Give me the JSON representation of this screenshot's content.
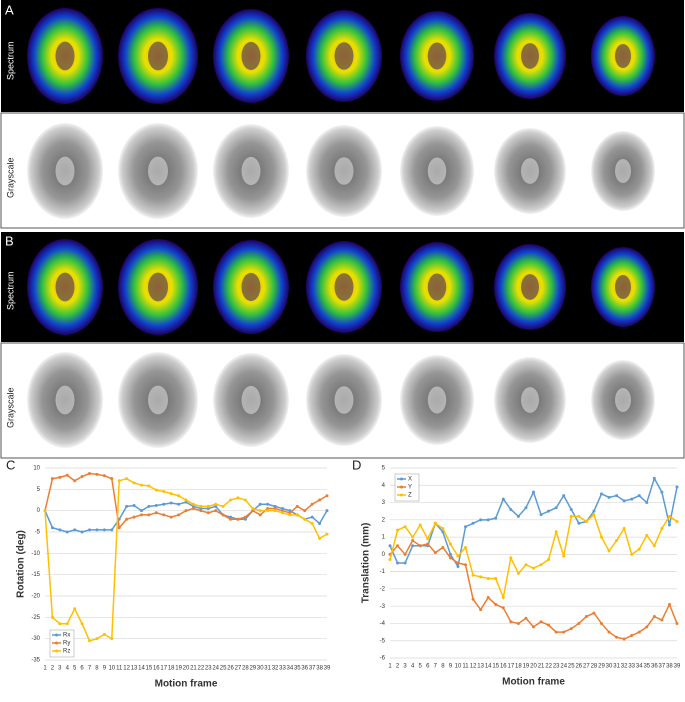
{
  "panels": {
    "a": "A",
    "b": "B",
    "spectrum": "Spectrum",
    "grayscale": "Grayscale"
  },
  "chart_data": [
    {
      "type": "line",
      "panel": "C",
      "ylabel": "Rotation (deg)",
      "xlabel": "Motion frame",
      "x": [
        1,
        2,
        3,
        4,
        5,
        6,
        7,
        8,
        9,
        10,
        11,
        12,
        13,
        14,
        15,
        16,
        17,
        18,
        19,
        20,
        21,
        22,
        23,
        24,
        25,
        26,
        27,
        28,
        29,
        30,
        31,
        32,
        33,
        34,
        35,
        36,
        37,
        38,
        39
      ],
      "xlim": [
        1,
        39
      ],
      "xticks": [
        1,
        2,
        3,
        4,
        5,
        6,
        7,
        8,
        9,
        10,
        11,
        12,
        13,
        14,
        15,
        16,
        17,
        18,
        19,
        20,
        21,
        22,
        23,
        24,
        25,
        26,
        27,
        28,
        29,
        30,
        31,
        32,
        33,
        34,
        35,
        36,
        37,
        38,
        39
      ],
      "ylim": [
        -35,
        10
      ],
      "yticks": [
        -35,
        -30,
        -25,
        -20,
        -15,
        -10,
        -5,
        0,
        5,
        10
      ],
      "grid": true,
      "legend": "lower left",
      "series": [
        {
          "name": "Rx",
          "color": "#5b9bd5",
          "values": [
            0,
            -4,
            -4.5,
            -5,
            -4.5,
            -5,
            -4.5,
            -4.5,
            -4.5,
            -4.5,
            -2,
            1,
            1.2,
            0,
            1,
            1.2,
            1.5,
            1.8,
            1.5,
            2,
            1,
            0.5,
            0.5,
            1,
            -1,
            -1.5,
            -2,
            -2,
            0,
            1.5,
            1.5,
            1,
            0.5,
            0,
            -1,
            -2,
            -1.5,
            -3,
            0
          ]
        },
        {
          "name": "Ry",
          "color": "#ed7d31",
          "values": [
            0,
            7.5,
            7.8,
            8.3,
            7,
            8,
            8.7,
            8.5,
            8.2,
            7.5,
            -4,
            -2,
            -1.5,
            -1,
            -1,
            -0.5,
            -1,
            -1.5,
            -1,
            0,
            0.5,
            0,
            -0.5,
            0,
            -1,
            -2,
            -2,
            -1.5,
            0,
            -1,
            0.5,
            0.5,
            0,
            -0.5,
            1,
            0,
            1.5,
            2.5,
            3.5
          ]
        },
        {
          "name": "Rz",
          "color": "#ffc000",
          "values": [
            0,
            -25,
            -26.5,
            -26.5,
            -23,
            -26.5,
            -30.5,
            -30,
            -29,
            -30,
            7,
            7.5,
            6.5,
            6,
            5.8,
            4.8,
            4.5,
            4,
            3.5,
            2.5,
            1.5,
            1,
            1,
            1.5,
            1,
            2.5,
            3,
            2.5,
            0.5,
            0,
            0,
            0,
            -0.5,
            -1,
            -1,
            -2,
            -3,
            -6.5,
            -5.5
          ]
        }
      ]
    },
    {
      "type": "line",
      "panel": "D",
      "ylabel": "Translation (mm)",
      "xlabel": "Motion frame",
      "x": [
        1,
        2,
        3,
        4,
        5,
        6,
        7,
        8,
        9,
        10,
        11,
        12,
        13,
        14,
        15,
        16,
        17,
        18,
        19,
        20,
        21,
        22,
        23,
        24,
        25,
        26,
        27,
        28,
        29,
        30,
        31,
        32,
        33,
        34,
        35,
        36,
        37,
        38,
        39
      ],
      "xlim": [
        1,
        39
      ],
      "xticks": [
        1,
        2,
        3,
        4,
        5,
        6,
        7,
        8,
        9,
        10,
        11,
        12,
        13,
        14,
        15,
        16,
        17,
        18,
        19,
        20,
        21,
        22,
        23,
        24,
        25,
        26,
        27,
        28,
        29,
        30,
        31,
        32,
        33,
        34,
        35,
        36,
        37,
        38,
        39
      ],
      "ylim": [
        -6,
        5
      ],
      "yticks": [
        -6,
        -5,
        -4,
        -3,
        -2,
        -1,
        0,
        1,
        2,
        3,
        4,
        5
      ],
      "grid": true,
      "legend": "upper left",
      "series": [
        {
          "name": "X",
          "color": "#5b9bd5",
          "values": [
            0.5,
            -0.5,
            -0.5,
            0.5,
            0.5,
            0.5,
            1.8,
            1.3,
            0,
            -0.7,
            1.6,
            1.8,
            2,
            2,
            2.1,
            3.2,
            2.6,
            2.2,
            2.7,
            3.6,
            2.3,
            2.5,
            2.7,
            3.4,
            2.6,
            1.8,
            1.9,
            2.5,
            3.5,
            3.3,
            3.4,
            3.1,
            3.2,
            3.4,
            3,
            4.4,
            3.6,
            1.7,
            3.9
          ]
        },
        {
          "name": "Y",
          "color": "#ed7d31",
          "values": [
            0,
            0.5,
            0,
            0.8,
            0.5,
            0.6,
            0.1,
            0.4,
            -0.2,
            -0.5,
            -0.6,
            -2.6,
            -3.2,
            -2.5,
            -2.9,
            -3.1,
            -3.9,
            -4,
            -3.7,
            -4.2,
            -3.9,
            -4.1,
            -4.5,
            -4.5,
            -4.3,
            -4,
            -3.6,
            -3.4,
            -4,
            -4.5,
            -4.8,
            -4.9,
            -4.7,
            -4.5,
            -4.2,
            -3.6,
            -3.8,
            -2.9,
            -4
          ]
        },
        {
          "name": "Z",
          "color": "#ffc000",
          "values": [
            -0.3,
            1.4,
            1.6,
            1,
            1.7,
            0.9,
            1.8,
            1.5,
            0.6,
            -0.1,
            0.4,
            -1.2,
            -1.3,
            -1.4,
            -1.4,
            -2.5,
            -0.2,
            -1.1,
            -0.6,
            -0.8,
            -0.6,
            -0.3,
            1.3,
            -0.1,
            2.2,
            2.2,
            1.9,
            2.3,
            1,
            0.2,
            0.8,
            1.5,
            0,
            0.3,
            1.1,
            0.5,
            1.5,
            2.2,
            1.9
          ]
        }
      ]
    }
  ]
}
